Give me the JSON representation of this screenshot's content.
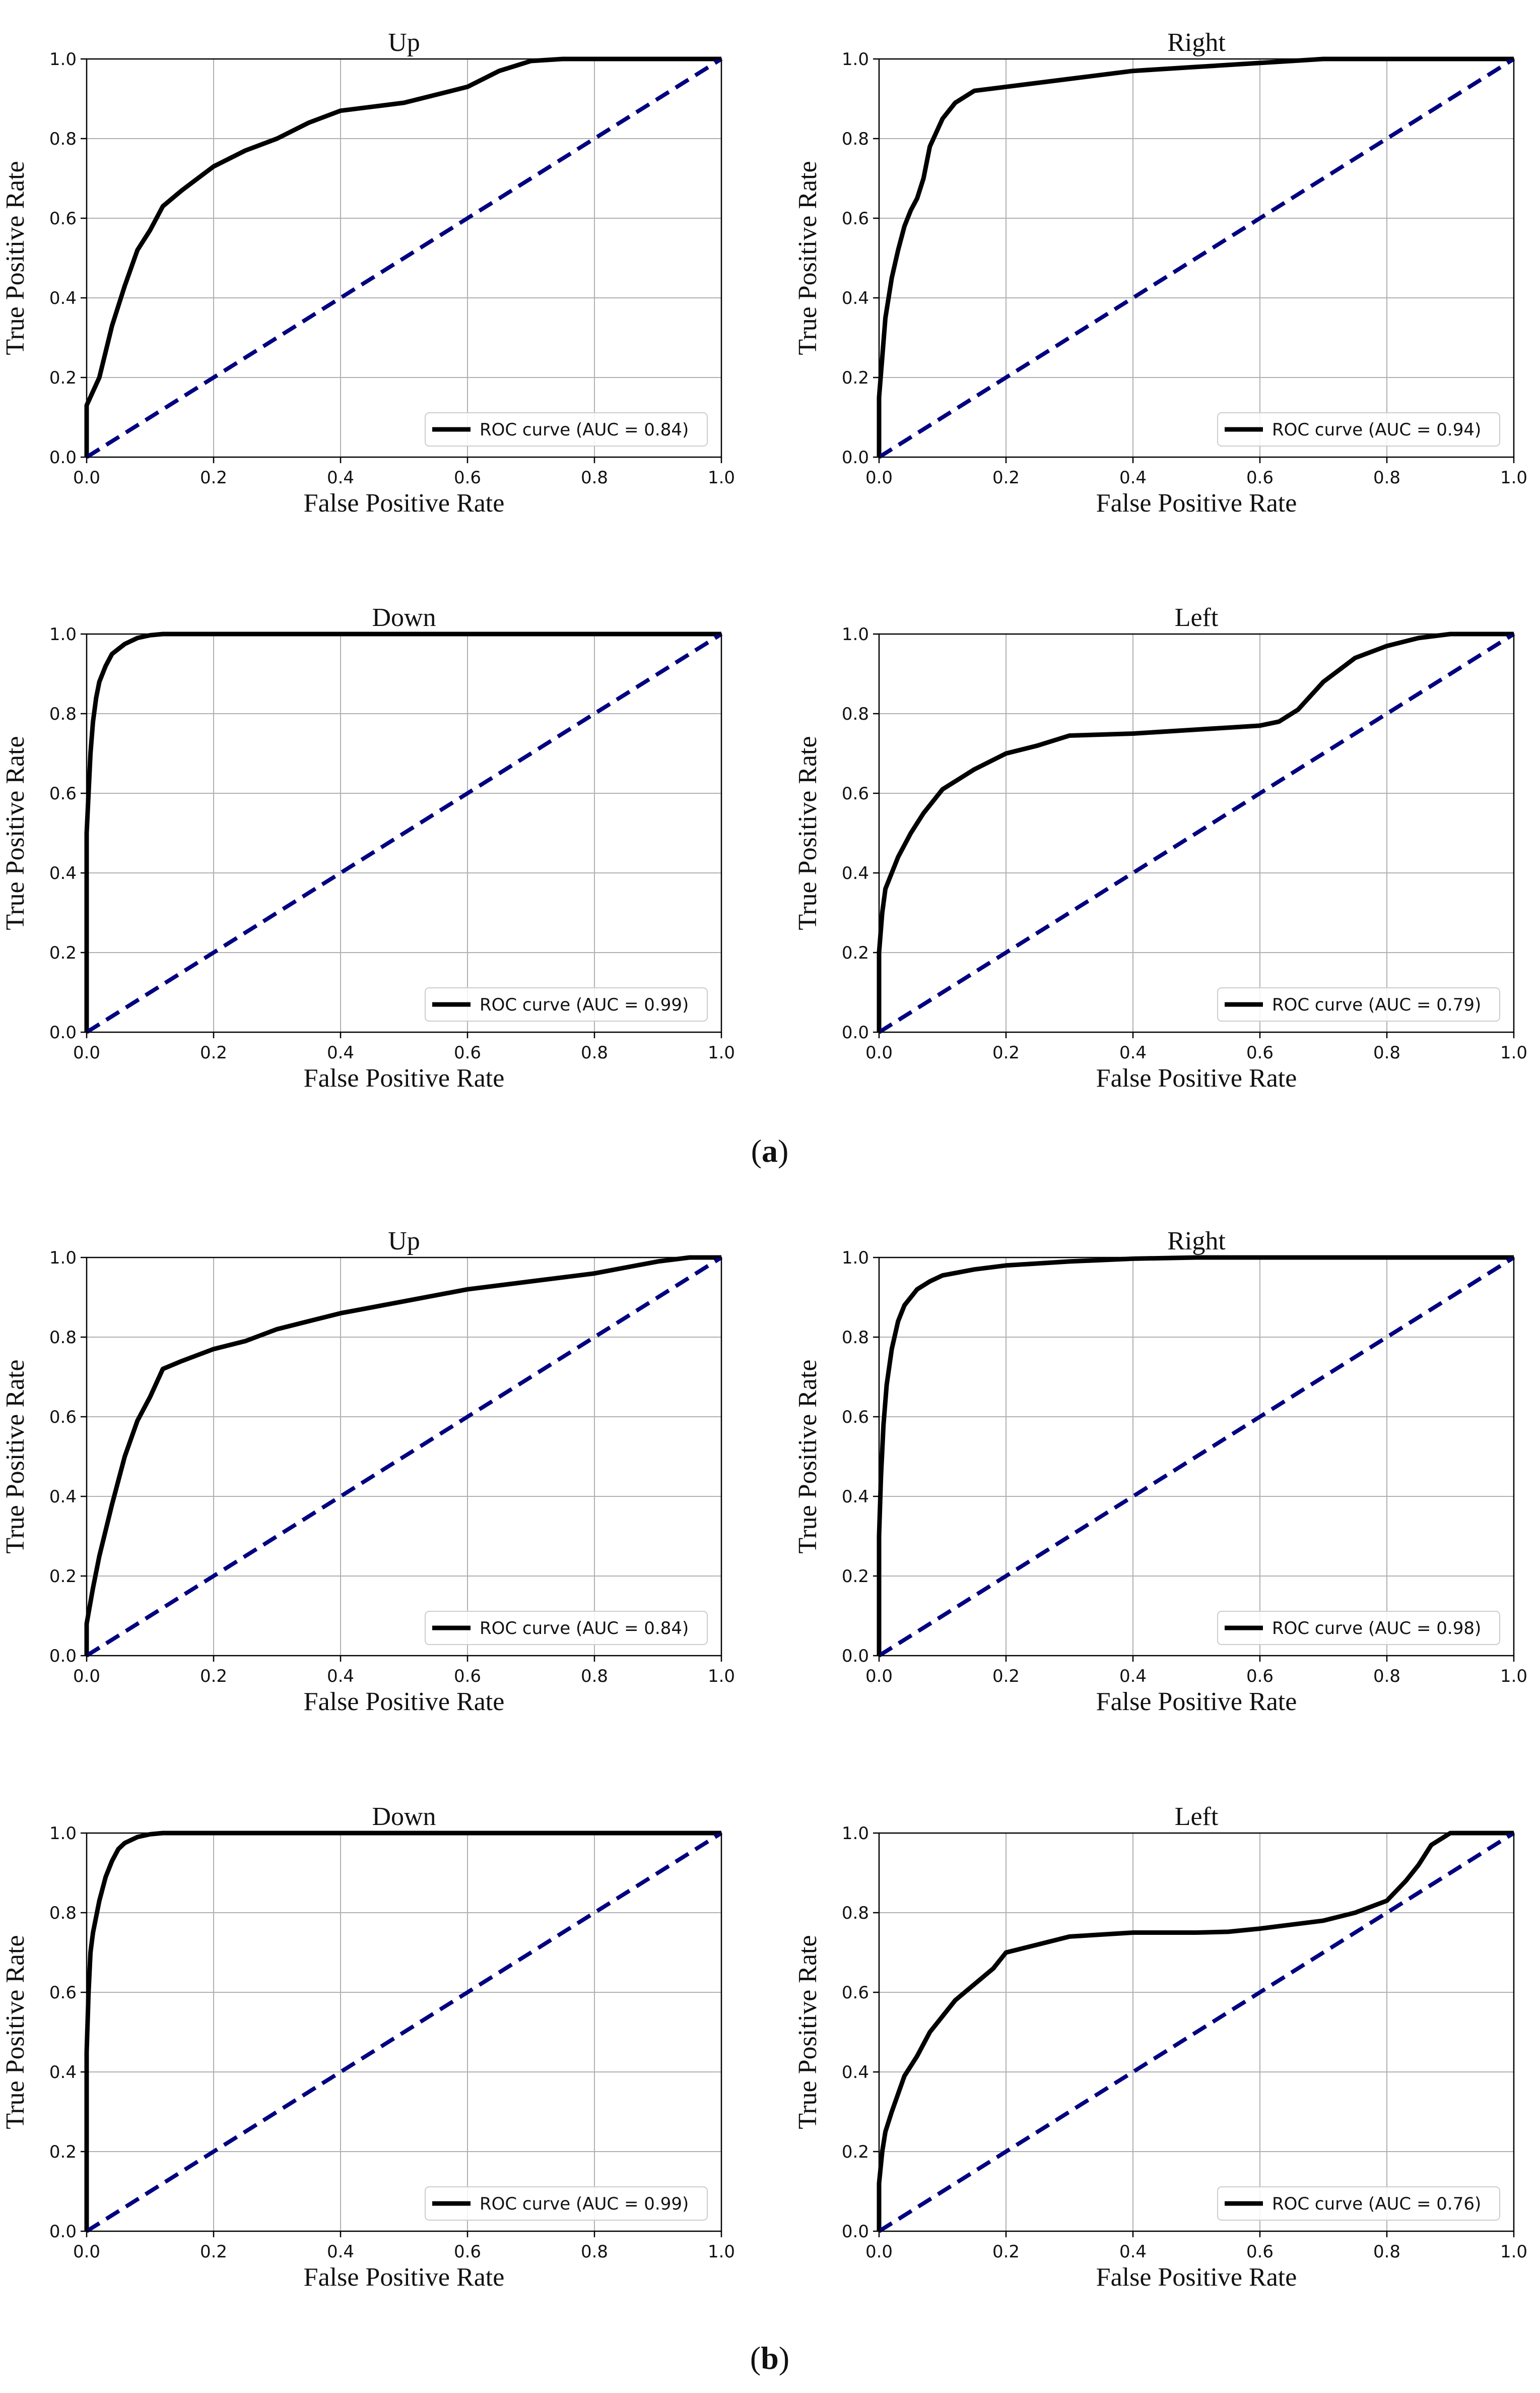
{
  "panel_labels": {
    "a": "a",
    "b": "b"
  },
  "chart_data": [
    {
      "type": "line",
      "group": "a",
      "title": "Up",
      "xlabel": "False Positive Rate",
      "ylabel": "True Positive Rate",
      "xlim": [
        0,
        1
      ],
      "ylim": [
        0,
        1
      ],
      "xticks": [
        "0.0",
        "0.2",
        "0.4",
        "0.6",
        "0.8",
        "1.0"
      ],
      "yticks": [
        "0.0",
        "0.2",
        "0.4",
        "0.6",
        "0.8",
        "1.0"
      ],
      "grid": true,
      "legend_position": "bottom-right",
      "series": [
        {
          "name": "ROC curve (AUC = 0.84)",
          "color": "#000000",
          "style": "solid",
          "x": [
            0,
            0,
            0.02,
            0.04,
            0.06,
            0.08,
            0.1,
            0.12,
            0.15,
            0.2,
            0.25,
            0.3,
            0.35,
            0.4,
            0.45,
            0.5,
            0.55,
            0.6,
            0.65,
            0.7,
            0.75,
            0.8,
            1.0
          ],
          "y": [
            0,
            0.13,
            0.2,
            0.33,
            0.43,
            0.52,
            0.57,
            0.63,
            0.67,
            0.73,
            0.77,
            0.8,
            0.84,
            0.87,
            0.88,
            0.89,
            0.91,
            0.93,
            0.97,
            0.995,
            1.0,
            1.0,
            1.0
          ]
        },
        {
          "name": "chance",
          "color": "#000080",
          "style": "dashed",
          "x": [
            0,
            1
          ],
          "y": [
            0,
            1
          ]
        }
      ]
    },
    {
      "type": "line",
      "group": "a",
      "title": "Right",
      "xlabel": "False Positive Rate",
      "ylabel": "True Positive Rate",
      "xlim": [
        0,
        1
      ],
      "ylim": [
        0,
        1
      ],
      "xticks": [
        "0.0",
        "0.2",
        "0.4",
        "0.6",
        "0.8",
        "1.0"
      ],
      "yticks": [
        "0.0",
        "0.2",
        "0.4",
        "0.6",
        "0.8",
        "1.0"
      ],
      "grid": true,
      "legend_position": "bottom-right",
      "series": [
        {
          "name": "ROC curve (AUC = 0.94)",
          "color": "#000000",
          "style": "solid",
          "x": [
            0,
            0,
            0.005,
            0.01,
            0.02,
            0.03,
            0.04,
            0.05,
            0.06,
            0.07,
            0.08,
            0.1,
            0.12,
            0.15,
            0.2,
            0.3,
            0.4,
            0.5,
            0.6,
            0.7,
            0.8,
            1.0
          ],
          "y": [
            0,
            0.15,
            0.25,
            0.35,
            0.45,
            0.52,
            0.58,
            0.62,
            0.65,
            0.7,
            0.78,
            0.85,
            0.89,
            0.92,
            0.93,
            0.95,
            0.97,
            0.98,
            0.99,
            1.0,
            1.0,
            1.0
          ]
        },
        {
          "name": "chance",
          "color": "#000080",
          "style": "dashed",
          "x": [
            0,
            1
          ],
          "y": [
            0,
            1
          ]
        }
      ]
    },
    {
      "type": "line",
      "group": "a",
      "title": "Down",
      "xlabel": "False Positive Rate",
      "ylabel": "True Positive Rate",
      "xlim": [
        0,
        1
      ],
      "ylim": [
        0,
        1
      ],
      "xticks": [
        "0.0",
        "0.2",
        "0.4",
        "0.6",
        "0.8",
        "1.0"
      ],
      "yticks": [
        "0.0",
        "0.2",
        "0.4",
        "0.6",
        "0.8",
        "1.0"
      ],
      "grid": true,
      "legend_position": "bottom-right",
      "series": [
        {
          "name": "ROC curve (AUC = 0.99)",
          "color": "#000000",
          "style": "solid",
          "x": [
            0,
            0,
            0.003,
            0.006,
            0.01,
            0.015,
            0.02,
            0.03,
            0.04,
            0.06,
            0.08,
            0.1,
            0.12,
            0.2,
            1.0
          ],
          "y": [
            0,
            0.5,
            0.6,
            0.7,
            0.78,
            0.84,
            0.88,
            0.92,
            0.95,
            0.975,
            0.99,
            0.997,
            1.0,
            1.0,
            1.0
          ]
        },
        {
          "name": "chance",
          "color": "#000080",
          "style": "dashed",
          "x": [
            0,
            1
          ],
          "y": [
            0,
            1
          ]
        }
      ]
    },
    {
      "type": "line",
      "group": "a",
      "title": "Left",
      "xlabel": "False Positive Rate",
      "ylabel": "True Positive Rate",
      "xlim": [
        0,
        1
      ],
      "ylim": [
        0,
        1
      ],
      "xticks": [
        "0.0",
        "0.2",
        "0.4",
        "0.6",
        "0.8",
        "1.0"
      ],
      "yticks": [
        "0.0",
        "0.2",
        "0.4",
        "0.6",
        "0.8",
        "1.0"
      ],
      "grid": true,
      "legend_position": "bottom-right",
      "series": [
        {
          "name": "ROC curve (AUC = 0.79)",
          "color": "#000000",
          "style": "solid",
          "x": [
            0,
            0,
            0.005,
            0.01,
            0.02,
            0.03,
            0.05,
            0.07,
            0.1,
            0.15,
            0.2,
            0.25,
            0.3,
            0.4,
            0.5,
            0.55,
            0.6,
            0.63,
            0.66,
            0.7,
            0.75,
            0.8,
            0.85,
            0.9,
            1.0
          ],
          "y": [
            0,
            0.2,
            0.3,
            0.36,
            0.4,
            0.44,
            0.5,
            0.55,
            0.61,
            0.66,
            0.7,
            0.72,
            0.745,
            0.75,
            0.76,
            0.765,
            0.77,
            0.78,
            0.81,
            0.88,
            0.94,
            0.97,
            0.99,
            1.0,
            1.0
          ]
        },
        {
          "name": "chance",
          "color": "#000080",
          "style": "dashed",
          "x": [
            0,
            1
          ],
          "y": [
            0,
            1
          ]
        }
      ]
    },
    {
      "type": "line",
      "group": "b",
      "title": "Up",
      "xlabel": "False Positive Rate",
      "ylabel": "True Positive Rate",
      "xlim": [
        0,
        1
      ],
      "ylim": [
        0,
        1
      ],
      "xticks": [
        "0.0",
        "0.2",
        "0.4",
        "0.6",
        "0.8",
        "1.0"
      ],
      "yticks": [
        "0.0",
        "0.2",
        "0.4",
        "0.6",
        "0.8",
        "1.0"
      ],
      "grid": true,
      "legend_position": "bottom-right",
      "series": [
        {
          "name": "ROC curve (AUC = 0.84)",
          "color": "#000000",
          "style": "solid",
          "x": [
            0,
            0,
            0.01,
            0.02,
            0.04,
            0.06,
            0.08,
            0.1,
            0.12,
            0.15,
            0.2,
            0.25,
            0.3,
            0.35,
            0.4,
            0.45,
            0.5,
            0.6,
            0.7,
            0.8,
            0.9,
            0.95,
            1.0
          ],
          "y": [
            0,
            0.08,
            0.17,
            0.25,
            0.38,
            0.5,
            0.59,
            0.65,
            0.72,
            0.74,
            0.77,
            0.79,
            0.82,
            0.84,
            0.86,
            0.875,
            0.89,
            0.92,
            0.94,
            0.96,
            0.99,
            1.0,
            1.0
          ]
        },
        {
          "name": "chance",
          "color": "#000080",
          "style": "dashed",
          "x": [
            0,
            1
          ],
          "y": [
            0,
            1
          ]
        }
      ]
    },
    {
      "type": "line",
      "group": "b",
      "title": "Right",
      "xlabel": "False Positive Rate",
      "ylabel": "True Positive Rate",
      "xlim": [
        0,
        1
      ],
      "ylim": [
        0,
        1
      ],
      "xticks": [
        "0.0",
        "0.2",
        "0.4",
        "0.6",
        "0.8",
        "1.0"
      ],
      "yticks": [
        "0.0",
        "0.2",
        "0.4",
        "0.6",
        "0.8",
        "1.0"
      ],
      "grid": true,
      "legend_position": "bottom-right",
      "series": [
        {
          "name": "ROC curve (AUC = 0.98)",
          "color": "#000000",
          "style": "solid",
          "x": [
            0,
            0,
            0.003,
            0.007,
            0.012,
            0.02,
            0.03,
            0.04,
            0.06,
            0.08,
            0.1,
            0.15,
            0.2,
            0.3,
            0.4,
            0.5,
            1.0
          ],
          "y": [
            0,
            0.3,
            0.45,
            0.58,
            0.68,
            0.77,
            0.84,
            0.88,
            0.92,
            0.94,
            0.955,
            0.97,
            0.98,
            0.99,
            0.997,
            1.0,
            1.0
          ]
        },
        {
          "name": "chance",
          "color": "#000080",
          "style": "dashed",
          "x": [
            0,
            1
          ],
          "y": [
            0,
            1
          ]
        }
      ]
    },
    {
      "type": "line",
      "group": "b",
      "title": "Down",
      "xlabel": "False Positive Rate",
      "ylabel": "True Positive Rate",
      "xlim": [
        0,
        1
      ],
      "ylim": [
        0,
        1
      ],
      "xticks": [
        "0.0",
        "0.2",
        "0.4",
        "0.6",
        "0.8",
        "1.0"
      ],
      "yticks": [
        "0.0",
        "0.2",
        "0.4",
        "0.6",
        "0.8",
        "1.0"
      ],
      "grid": true,
      "legend_position": "bottom-right",
      "series": [
        {
          "name": "ROC curve (AUC = 0.99)",
          "color": "#000000",
          "style": "solid",
          "x": [
            0,
            0,
            0.003,
            0.006,
            0.01,
            0.015,
            0.02,
            0.03,
            0.04,
            0.05,
            0.06,
            0.08,
            0.1,
            0.12,
            0.2,
            1.0
          ],
          "y": [
            0,
            0.45,
            0.6,
            0.7,
            0.75,
            0.79,
            0.83,
            0.89,
            0.93,
            0.96,
            0.975,
            0.99,
            0.997,
            1.0,
            1.0,
            1.0
          ]
        },
        {
          "name": "chance",
          "color": "#000080",
          "style": "dashed",
          "x": [
            0,
            1
          ],
          "y": [
            0,
            1
          ]
        }
      ]
    },
    {
      "type": "line",
      "group": "b",
      "title": "Left",
      "xlabel": "False Positive Rate",
      "ylabel": "True Positive Rate",
      "xlim": [
        0,
        1
      ],
      "ylim": [
        0,
        1
      ],
      "xticks": [
        "0.0",
        "0.2",
        "0.4",
        "0.6",
        "0.8",
        "1.0"
      ],
      "yticks": [
        "0.0",
        "0.2",
        "0.4",
        "0.6",
        "0.8",
        "1.0"
      ],
      "grid": true,
      "legend_position": "bottom-right",
      "series": [
        {
          "name": "ROC curve (AUC = 0.76)",
          "color": "#000000",
          "style": "solid",
          "x": [
            0,
            0,
            0.005,
            0.01,
            0.02,
            0.04,
            0.06,
            0.08,
            0.1,
            0.12,
            0.15,
            0.18,
            0.2,
            0.25,
            0.3,
            0.4,
            0.5,
            0.55,
            0.6,
            0.65,
            0.7,
            0.75,
            0.8,
            0.83,
            0.85,
            0.87,
            0.9,
            1.0
          ],
          "y": [
            0,
            0.12,
            0.2,
            0.25,
            0.3,
            0.39,
            0.44,
            0.5,
            0.54,
            0.58,
            0.62,
            0.66,
            0.7,
            0.72,
            0.74,
            0.75,
            0.75,
            0.752,
            0.76,
            0.77,
            0.78,
            0.8,
            0.83,
            0.88,
            0.92,
            0.97,
            1.0,
            1.0
          ]
        },
        {
          "name": "chance",
          "color": "#000080",
          "style": "dashed",
          "x": [
            0,
            1
          ],
          "y": [
            0,
            1
          ]
        }
      ]
    }
  ]
}
